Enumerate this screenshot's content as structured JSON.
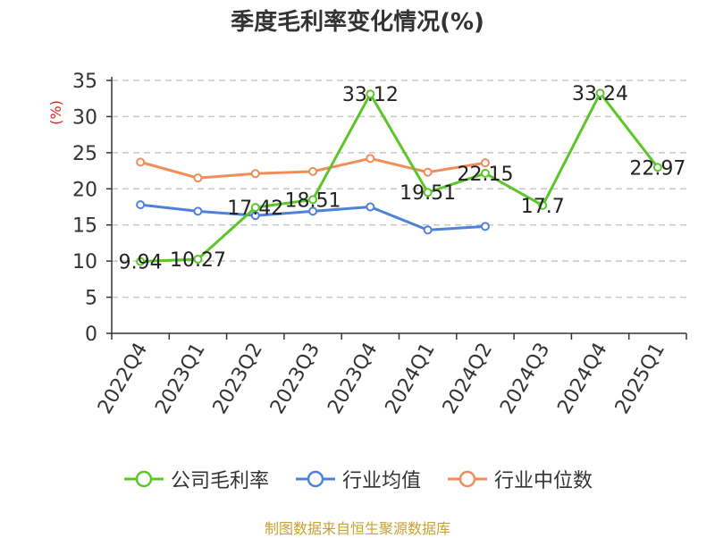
{
  "title": "季度毛利率变化情况(%)",
  "source": "制图数据来自恒生聚源数据库",
  "chart_data": {
    "type": "line",
    "title": "季度毛利率变化情况(%)",
    "xlabel": "",
    "ylabel": "(%)",
    "ylim": [
      0,
      35
    ],
    "yticks": [
      0,
      5,
      10,
      15,
      20,
      25,
      30,
      35
    ],
    "grid": true,
    "legend_position": "bottom",
    "categories": [
      "2022Q4",
      "2023Q1",
      "2023Q2",
      "2023Q3",
      "2023Q4",
      "2024Q1",
      "2024Q2",
      "2024Q3",
      "2024Q4",
      "2025Q1"
    ],
    "series": [
      {
        "name": "公司毛利率",
        "color": "#5bc62a",
        "values": [
          9.94,
          10.27,
          17.42,
          18.51,
          33.12,
          19.51,
          22.15,
          17.7,
          33.24,
          22.97
        ],
        "labels": [
          "9.94",
          "10.27",
          "17.42",
          "18.51",
          "33.12",
          "19.51",
          "22.15",
          "17.7",
          "33.24",
          "22.97"
        ]
      },
      {
        "name": "行业均值",
        "color": "#4f81d9",
        "values": [
          17.8,
          16.9,
          16.3,
          16.9,
          17.5,
          14.3,
          14.8,
          null,
          null,
          null
        ]
      },
      {
        "name": "行业中位数",
        "color": "#f28c58",
        "values": [
          23.7,
          21.5,
          22.1,
          22.4,
          24.2,
          22.3,
          23.6,
          null,
          null,
          null
        ]
      }
    ]
  }
}
